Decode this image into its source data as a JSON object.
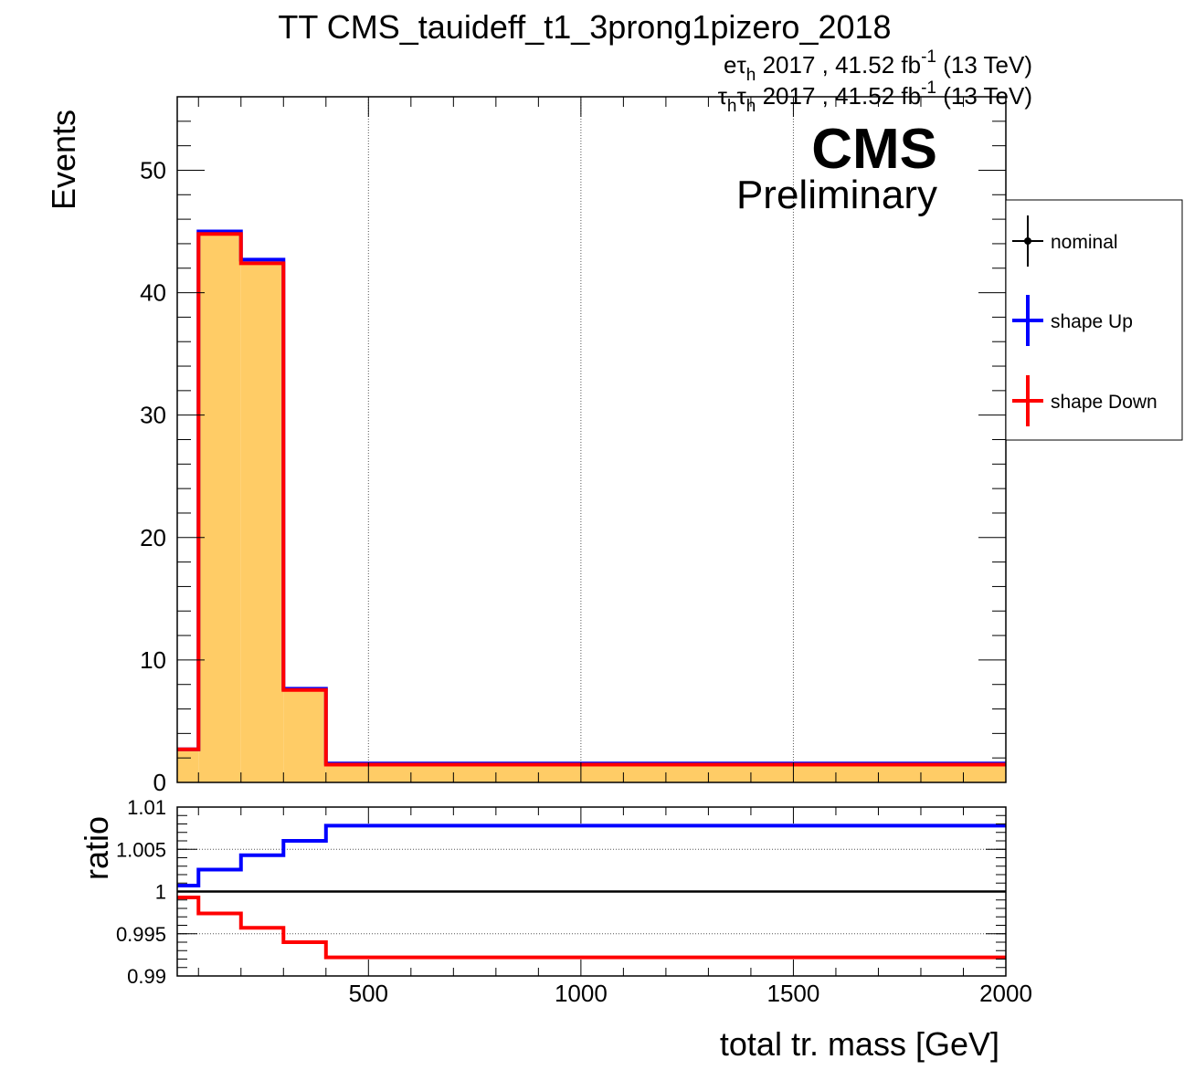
{
  "title": "TT CMS_tauideff_t1_3prong1pizero_2018",
  "lumi_lines": [
    {
      "channel": "eτ",
      "sub": "h",
      "rest": " 2017 , 41.52 fb",
      "sup": "-1",
      "energy": " (13 TeV)"
    },
    {
      "channel": "τ",
      "sub": "h",
      "channel2": "τ",
      "sub2": "h",
      "rest": " 2017 , 41.52 fb",
      "sup": "-1",
      "energy": " (13 TeV)"
    }
  ],
  "cms_label": "CMS",
  "cms_sublabel": "Preliminary",
  "chart_data": [
    {
      "type": "histogram",
      "panel": "main",
      "ylabel": "Events",
      "xlim": [
        50,
        2000
      ],
      "ylim": [
        0,
        56
      ],
      "yticks": [
        0,
        10,
        20,
        30,
        40,
        50
      ],
      "yticks_labels": [
        "0",
        "10",
        "20",
        "30",
        "40",
        "50"
      ],
      "xgrid": [
        500,
        1000,
        1500
      ],
      "bin_edges": [
        50,
        100,
        200,
        300,
        400,
        2000
      ],
      "series": [
        {
          "name": "nominal",
          "color": "#000000",
          "values": [
            2.7,
            44.9,
            42.5,
            7.6,
            1.5
          ]
        },
        {
          "name": "shape Up",
          "color": "#0000ff",
          "values": [
            2.7,
            45.0,
            42.7,
            7.65,
            1.55
          ]
        },
        {
          "name": "shape Down",
          "color": "#ff0000",
          "values": [
            2.7,
            44.8,
            42.4,
            7.55,
            1.45
          ]
        }
      ],
      "fill_color": "#ffcc66"
    },
    {
      "type": "histogram",
      "panel": "ratio",
      "ylabel": "ratio",
      "xlabel": "total tr. mass [GeV]",
      "xlim": [
        50,
        2000
      ],
      "ylim": [
        0.99,
        1.01
      ],
      "yticks": [
        0.99,
        0.995,
        1,
        1.005,
        1.01
      ],
      "yticks_labels": [
        "0.99",
        "0.995",
        "1",
        "1.005",
        "1.01"
      ],
      "xticks": [
        500,
        1000,
        1500,
        2000
      ],
      "xticks_labels": [
        "500",
        "1000",
        "1500",
        "2000"
      ],
      "bin_edges": [
        50,
        100,
        200,
        300,
        400,
        2000
      ],
      "series": [
        {
          "name": "shape Up",
          "color": "#0000ff",
          "values": [
            1.0007,
            1.0026,
            1.0043,
            1.006,
            1.0078
          ]
        },
        {
          "name": "shape Down",
          "color": "#ff0000",
          "values": [
            0.9993,
            0.9974,
            0.9957,
            0.994,
            0.9922
          ]
        }
      ],
      "reference": 1
    }
  ],
  "legend": {
    "entries": [
      {
        "label": "nominal",
        "color": "#000000"
      },
      {
        "label": "shape Up",
        "color": "#0000ff"
      },
      {
        "label": "shape Down",
        "color": "#ff0000"
      }
    ]
  }
}
